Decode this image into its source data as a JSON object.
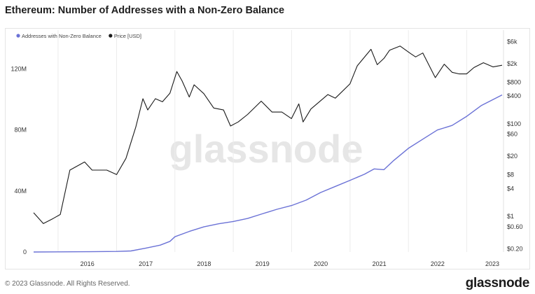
{
  "header": {
    "title": "Ethereum: Number of Addresses with a Non-Zero Balance"
  },
  "footer": {
    "copyright": "© 2023 Glassnode. All Rights Reserved.",
    "logo": "glassnode"
  },
  "watermark": "glassnode",
  "chart_data": {
    "type": "line",
    "title": "Ethereum: Number of Addresses with a Non-Zero Balance",
    "legend": {
      "placement": "top-left",
      "entries": [
        {
          "name": "Addresses with Non-Zero Balance",
          "color": "#6b72d6"
        },
        {
          "name": "Price [USD]",
          "color": "#1a1a1a"
        }
      ]
    },
    "x_axis": {
      "type": "date",
      "range": [
        "2015-08-01",
        "2023-08-10"
      ],
      "tick_labels": [
        "2016",
        "2017",
        "2018",
        "2019",
        "2020",
        "2021",
        "2022",
        "2023"
      ]
    },
    "y_axis_left": {
      "label": "",
      "range": [
        0,
        140000000
      ],
      "tick_labels": [
        "0",
        "40M",
        "80M",
        "120M"
      ],
      "tick_values": [
        0,
        40000000,
        80000000,
        120000000
      ]
    },
    "y_axis_right": {
      "label": "",
      "scale": "log",
      "range": [
        0.17,
        7000
      ],
      "tick_labels": [
        "$0.20",
        "$0.60",
        "$1",
        "$4",
        "$8",
        "$20",
        "$60",
        "$100",
        "$400",
        "$800",
        "$2k",
        "$6k"
      ],
      "tick_values": [
        0.2,
        0.6,
        1,
        4,
        8,
        20,
        60,
        100,
        400,
        800,
        2000,
        6000
      ]
    },
    "grid": {
      "vertical": true,
      "horizontal": false
    },
    "series": [
      {
        "name": "Addresses with Non-Zero Balance",
        "axis": "left",
        "color": "#6b72d6",
        "points": [
          [
            "2015-08-01",
            0
          ],
          [
            "2016-01-01",
            100000
          ],
          [
            "2016-07-01",
            200000
          ],
          [
            "2017-01-01",
            350000
          ],
          [
            "2017-04-01",
            700000
          ],
          [
            "2017-07-01",
            2500000
          ],
          [
            "2017-10-01",
            4500000
          ],
          [
            "2017-12-01",
            7000000
          ],
          [
            "2018-01-01",
            10000000
          ],
          [
            "2018-04-01",
            13500000
          ],
          [
            "2018-07-01",
            16500000
          ],
          [
            "2018-10-01",
            18500000
          ],
          [
            "2019-01-01",
            20000000
          ],
          [
            "2019-04-01",
            22000000
          ],
          [
            "2019-07-01",
            25000000
          ],
          [
            "2019-10-01",
            28000000
          ],
          [
            "2020-01-01",
            30500000
          ],
          [
            "2020-04-01",
            34000000
          ],
          [
            "2020-07-01",
            39000000
          ],
          [
            "2020-10-01",
            43000000
          ],
          [
            "2021-01-01",
            47000000
          ],
          [
            "2021-04-01",
            51000000
          ],
          [
            "2021-06-01",
            54500000
          ],
          [
            "2021-08-01",
            54000000
          ],
          [
            "2021-10-01",
            60000000
          ],
          [
            "2022-01-01",
            68000000
          ],
          [
            "2022-04-01",
            74000000
          ],
          [
            "2022-07-01",
            80000000
          ],
          [
            "2022-10-01",
            83000000
          ],
          [
            "2023-01-01",
            89000000
          ],
          [
            "2023-04-01",
            96000000
          ],
          [
            "2023-08-10",
            103000000
          ]
        ]
      },
      {
        "name": "Price [USD]",
        "axis": "right",
        "color": "#1a1a1a",
        "points": [
          [
            "2015-08-01",
            1.2
          ],
          [
            "2015-10-01",
            0.7
          ],
          [
            "2015-12-01",
            0.9
          ],
          [
            "2016-01-15",
            1.1
          ],
          [
            "2016-03-15",
            10
          ],
          [
            "2016-06-15",
            15
          ],
          [
            "2016-08-01",
            10
          ],
          [
            "2016-11-01",
            10
          ],
          [
            "2017-01-01",
            8
          ],
          [
            "2017-03-01",
            18
          ],
          [
            "2017-05-01",
            85
          ],
          [
            "2017-06-15",
            350
          ],
          [
            "2017-07-15",
            200
          ],
          [
            "2017-09-01",
            350
          ],
          [
            "2017-10-15",
            300
          ],
          [
            "2017-12-01",
            460
          ],
          [
            "2018-01-13",
            1350
          ],
          [
            "2018-02-15",
            850
          ],
          [
            "2018-04-01",
            380
          ],
          [
            "2018-05-01",
            700
          ],
          [
            "2018-07-01",
            450
          ],
          [
            "2018-09-01",
            220
          ],
          [
            "2018-11-01",
            200
          ],
          [
            "2018-12-15",
            90
          ],
          [
            "2019-02-01",
            110
          ],
          [
            "2019-04-01",
            160
          ],
          [
            "2019-06-25",
            310
          ],
          [
            "2019-09-01",
            180
          ],
          [
            "2019-11-01",
            180
          ],
          [
            "2019-12-31",
            130
          ],
          [
            "2020-02-15",
            270
          ],
          [
            "2020-03-13",
            110
          ],
          [
            "2020-05-01",
            210
          ],
          [
            "2020-08-15",
            430
          ],
          [
            "2020-10-01",
            360
          ],
          [
            "2020-12-31",
            730
          ],
          [
            "2021-02-15",
            1800
          ],
          [
            "2021-05-12",
            4100
          ],
          [
            "2021-06-20",
            1900
          ],
          [
            "2021-08-01",
            2600
          ],
          [
            "2021-09-05",
            3900
          ],
          [
            "2021-11-10",
            4800
          ],
          [
            "2022-01-15",
            3300
          ],
          [
            "2022-02-15",
            2800
          ],
          [
            "2022-04-01",
            3400
          ],
          [
            "2022-06-18",
            1000
          ],
          [
            "2022-08-13",
            1950
          ],
          [
            "2022-10-01",
            1300
          ],
          [
            "2022-11-15",
            1200
          ],
          [
            "2022-12-31",
            1200
          ],
          [
            "2023-02-15",
            1650
          ],
          [
            "2023-04-15",
            2100
          ],
          [
            "2023-06-15",
            1700
          ],
          [
            "2023-08-10",
            1850
          ]
        ]
      }
    ]
  }
}
